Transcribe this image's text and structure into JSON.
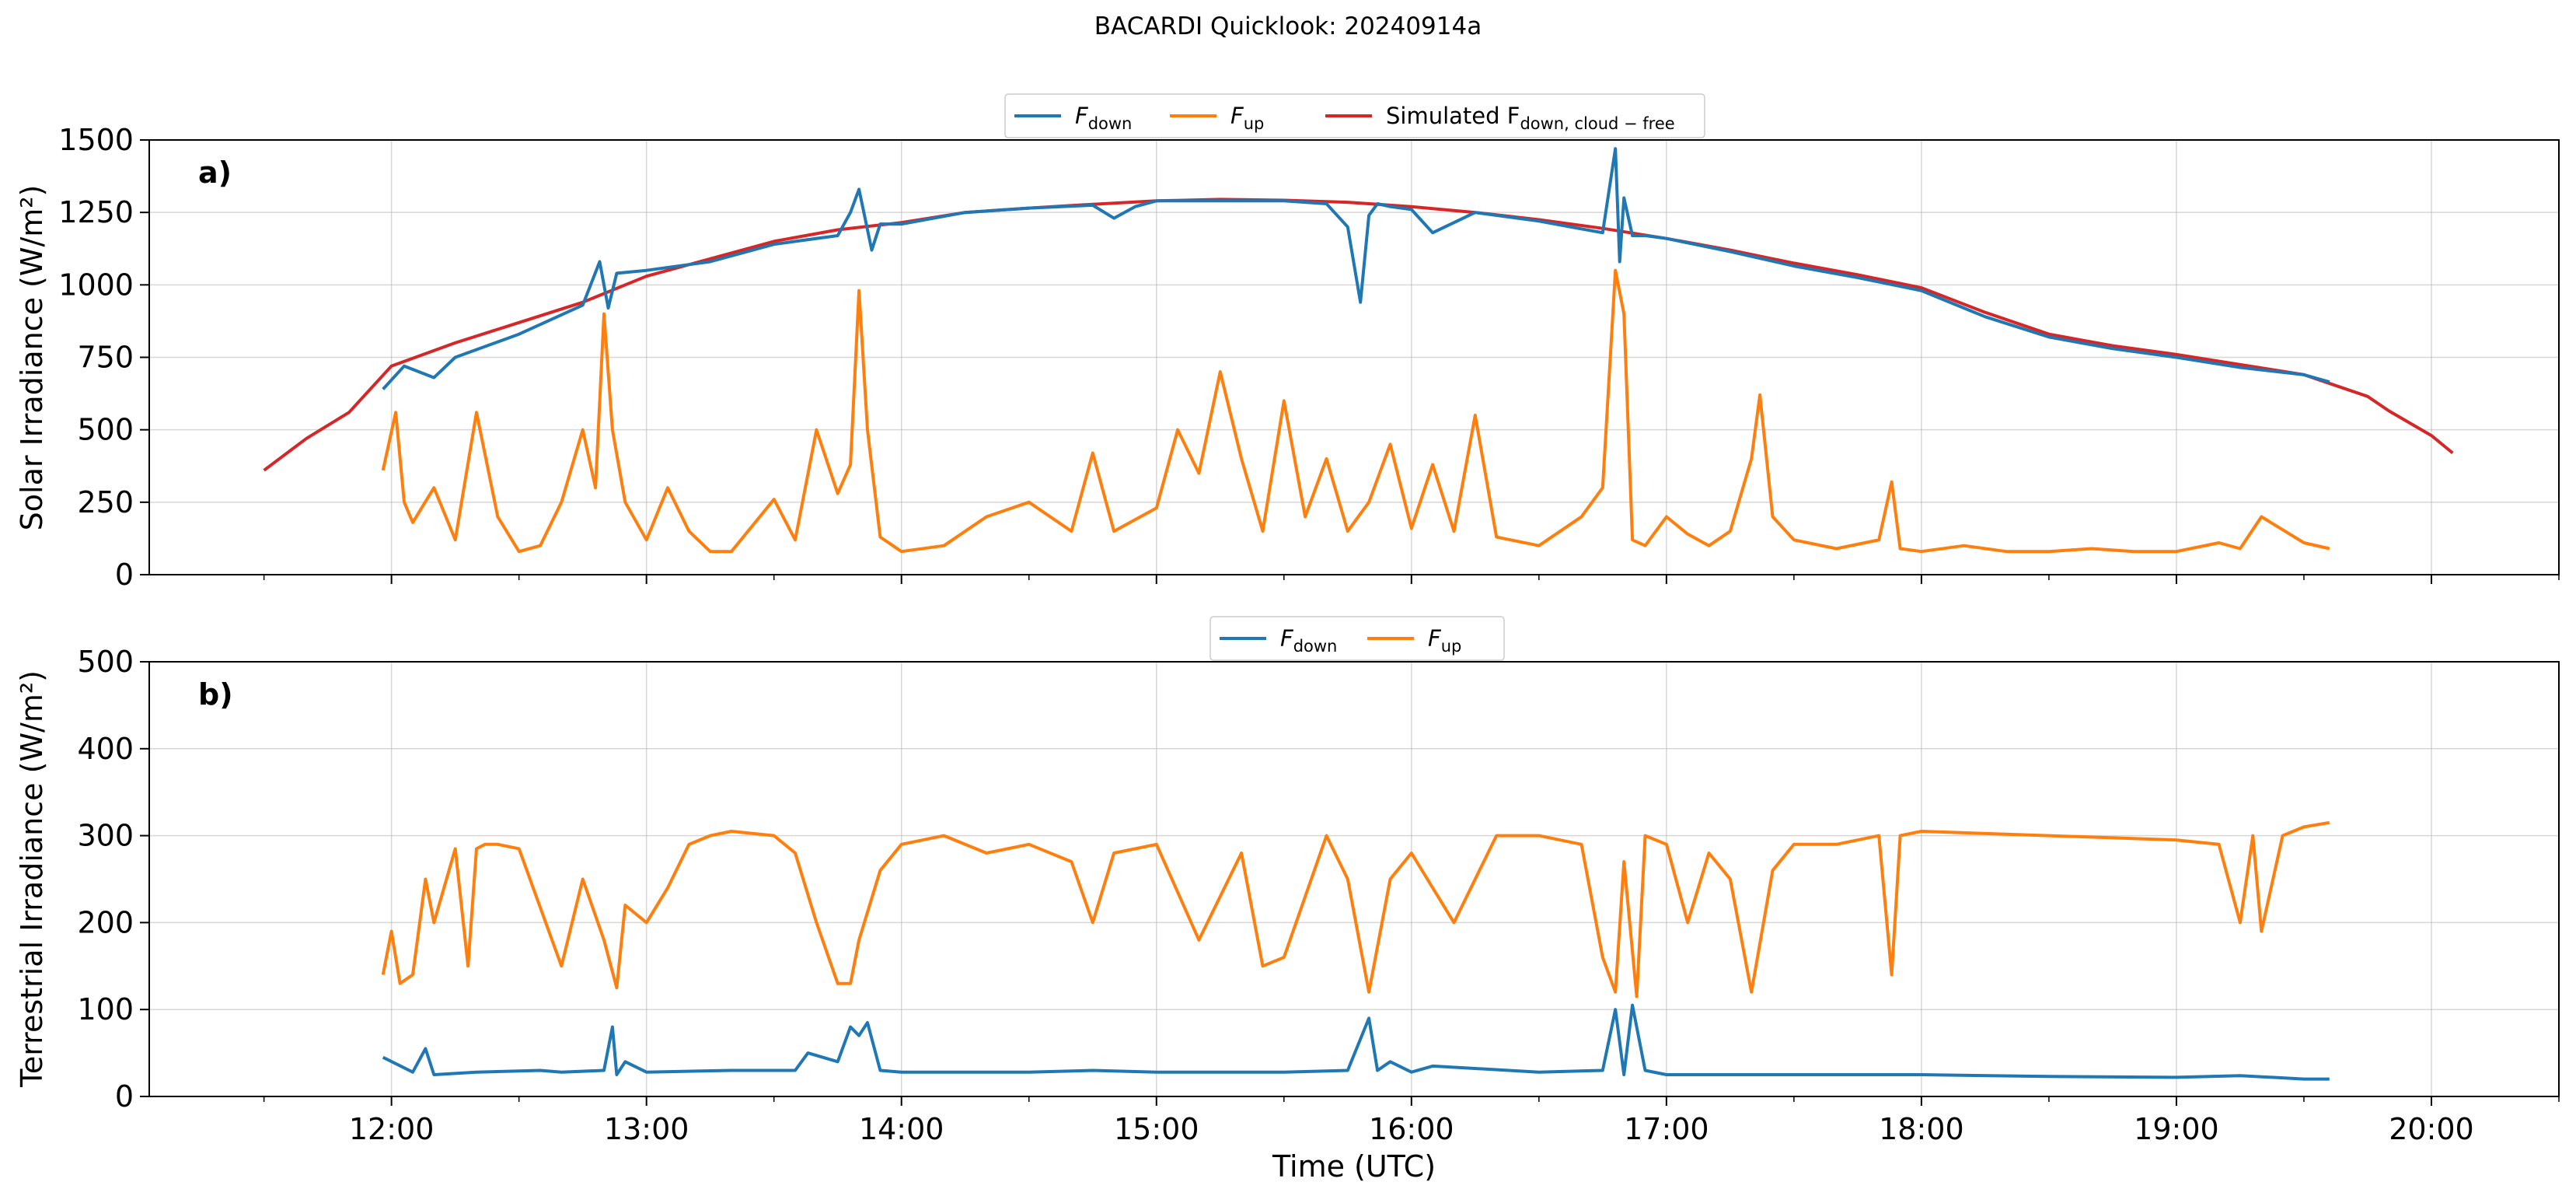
{
  "figure": {
    "title": "BACARDI Quicklook: 20240914a"
  },
  "colors": {
    "down": "#1f77b4",
    "up": "#ff7f0e",
    "sim": "#d62728",
    "grid": "#b0b0b0"
  },
  "chart_data": [
    {
      "type": "line",
      "panel_label": "a)",
      "xlabel": "",
      "ylabel": "Solar Irradiance (W/m²)",
      "xlim": [
        "11:03",
        "20:30"
      ],
      "ylim": [
        0,
        1500
      ],
      "x_ticks": [
        "12:00",
        "13:00",
        "14:00",
        "15:00",
        "16:00",
        "17:00",
        "18:00",
        "19:00",
        "20:00"
      ],
      "y_ticks": [
        0,
        250,
        500,
        750,
        1000,
        1250,
        1500
      ],
      "grid": true,
      "legend": {
        "placement": "top-center",
        "entries": [
          {
            "key": "down",
            "text": "F",
            "sub": "down"
          },
          {
            "key": "up",
            "text": "F",
            "sub": "up"
          },
          {
            "key": "sim",
            "text": "Simulated F",
            "sub": "down, cloud − free"
          }
        ]
      },
      "series": [
        {
          "key": "sim",
          "name": "Simulated F_down, cloud−free",
          "x": [
            "11:30",
            "11:40",
            "11:50",
            "12:00",
            "12:15",
            "12:30",
            "12:45",
            "13:00",
            "13:15",
            "13:30",
            "13:45",
            "14:00",
            "14:15",
            "14:30",
            "14:45",
            "15:00",
            "15:15",
            "15:30",
            "15:45",
            "16:00",
            "16:15",
            "16:30",
            "16:45",
            "17:00",
            "17:15",
            "17:30",
            "17:45",
            "18:00",
            "18:15",
            "18:30",
            "18:45",
            "19:00",
            "19:15",
            "19:30",
            "19:35",
            "19:45",
            "19:50",
            "20:00",
            "20:05"
          ],
          "y": [
            360,
            470,
            560,
            720,
            800,
            870,
            940,
            1030,
            1090,
            1150,
            1190,
            1215,
            1250,
            1265,
            1278,
            1290,
            1295,
            1292,
            1285,
            1270,
            1250,
            1225,
            1195,
            1160,
            1120,
            1075,
            1035,
            990,
            905,
            830,
            790,
            760,
            725,
            690,
            665,
            615,
            565,
            480,
            420
          ]
        },
        {
          "key": "down",
          "name": "F_down",
          "x": [
            "11:58",
            "12:03",
            "12:10",
            "12:15",
            "12:30",
            "12:45",
            "12:49",
            "12:51",
            "12:53",
            "13:00",
            "13:15",
            "13:30",
            "13:35",
            "13:45",
            "13:48",
            "13:50",
            "13:53",
            "13:55",
            "14:00",
            "14:15",
            "14:30",
            "14:45",
            "14:50",
            "14:55",
            "15:00",
            "15:15",
            "15:30",
            "15:40",
            "15:45",
            "15:48",
            "15:50",
            "15:52",
            "15:55",
            "16:00",
            "16:05",
            "16:15",
            "16:30",
            "16:45",
            "16:48",
            "16:49",
            "16:50",
            "16:52",
            "16:55",
            "17:00",
            "17:15",
            "17:30",
            "17:45",
            "18:00",
            "18:15",
            "18:30",
            "18:45",
            "19:00",
            "19:15",
            "19:30",
            "19:36"
          ],
          "y": [
            640,
            720,
            680,
            750,
            830,
            930,
            1080,
            920,
            1040,
            1050,
            1080,
            1140,
            1150,
            1170,
            1250,
            1330,
            1120,
            1210,
            1210,
            1250,
            1265,
            1275,
            1230,
            1270,
            1290,
            1290,
            1290,
            1280,
            1200,
            940,
            1240,
            1280,
            1270,
            1260,
            1180,
            1250,
            1220,
            1180,
            1470,
            1080,
            1300,
            1170,
            1170,
            1160,
            1115,
            1065,
            1025,
            980,
            890,
            820,
            780,
            750,
            715,
            690,
            665
          ]
        },
        {
          "key": "up",
          "name": "F_up",
          "x": [
            "11:58",
            "12:01",
            "12:03",
            "12:05",
            "12:10",
            "12:15",
            "12:20",
            "12:25",
            "12:30",
            "12:35",
            "12:40",
            "12:45",
            "12:48",
            "12:50",
            "12:52",
            "12:55",
            "13:00",
            "13:05",
            "13:10",
            "13:15",
            "13:20",
            "13:30",
            "13:35",
            "13:40",
            "13:45",
            "13:48",
            "13:50",
            "13:52",
            "13:55",
            "14:00",
            "14:10",
            "14:20",
            "14:30",
            "14:40",
            "14:45",
            "14:50",
            "15:00",
            "15:05",
            "15:10",
            "15:15",
            "15:20",
            "15:25",
            "15:30",
            "15:35",
            "15:40",
            "15:45",
            "15:50",
            "15:55",
            "16:00",
            "16:05",
            "16:10",
            "16:15",
            "16:20",
            "16:30",
            "16:40",
            "16:45",
            "16:48",
            "16:50",
            "16:52",
            "16:55",
            "17:00",
            "17:05",
            "17:10",
            "17:15",
            "17:20",
            "17:22",
            "17:25",
            "17:30",
            "17:40",
            "17:50",
            "17:53",
            "17:55",
            "18:00",
            "18:10",
            "18:20",
            "18:30",
            "18:40",
            "18:50",
            "19:00",
            "19:10",
            "19:15",
            "19:20",
            "19:30",
            "19:36"
          ],
          "y": [
            360,
            560,
            250,
            180,
            300,
            120,
            560,
            200,
            80,
            100,
            250,
            500,
            300,
            900,
            500,
            250,
            120,
            300,
            150,
            80,
            80,
            260,
            120,
            500,
            280,
            380,
            980,
            500,
            130,
            80,
            100,
            200,
            250,
            150,
            420,
            150,
            230,
            500,
            350,
            700,
            400,
            150,
            600,
            200,
            400,
            150,
            250,
            450,
            160,
            380,
            150,
            550,
            130,
            100,
            200,
            300,
            1050,
            900,
            120,
            100,
            200,
            140,
            100,
            150,
            400,
            620,
            200,
            120,
            90,
            120,
            320,
            90,
            80,
            100,
            80,
            80,
            90,
            80,
            80,
            110,
            90,
            200,
            110,
            90
          ]
        }
      ]
    },
    {
      "type": "line",
      "panel_label": "b)",
      "xlabel": "Time (UTC)",
      "ylabel": "Terrestrial Irradiance (W/m²)",
      "xlim": [
        "11:03",
        "20:30"
      ],
      "ylim": [
        0,
        500
      ],
      "x_ticks": [
        "12:00",
        "13:00",
        "14:00",
        "15:00",
        "16:00",
        "17:00",
        "18:00",
        "19:00",
        "20:00"
      ],
      "y_ticks": [
        0,
        100,
        200,
        300,
        400,
        500
      ],
      "grid": true,
      "legend": {
        "placement": "top-center",
        "entries": [
          {
            "key": "down",
            "text": "F",
            "sub": "down"
          },
          {
            "key": "up",
            "text": "F",
            "sub": "up"
          }
        ]
      },
      "series": [
        {
          "key": "down",
          "name": "F_down",
          "x": [
            "11:58",
            "12:05",
            "12:08",
            "12:10",
            "12:20",
            "12:35",
            "12:40",
            "12:50",
            "12:52",
            "12:53",
            "12:55",
            "13:00",
            "13:20",
            "13:35",
            "13:38",
            "13:45",
            "13:48",
            "13:50",
            "13:52",
            "13:55",
            "14:00",
            "14:30",
            "14:45",
            "15:00",
            "15:30",
            "15:45",
            "15:50",
            "15:52",
            "15:55",
            "16:00",
            "16:05",
            "16:30",
            "16:45",
            "16:48",
            "16:50",
            "16:52",
            "16:55",
            "17:00",
            "17:30",
            "18:00",
            "18:30",
            "19:00",
            "19:15",
            "19:30",
            "19:36"
          ],
          "y": [
            45,
            28,
            55,
            25,
            28,
            30,
            28,
            30,
            80,
            25,
            40,
            28,
            30,
            30,
            50,
            40,
            80,
            70,
            85,
            30,
            28,
            28,
            30,
            28,
            28,
            30,
            90,
            30,
            40,
            28,
            35,
            28,
            30,
            100,
            25,
            105,
            30,
            25,
            25,
            25,
            23,
            22,
            24,
            20,
            20
          ]
        },
        {
          "key": "up",
          "name": "F_up",
          "x": [
            "11:58",
            "12:00",
            "12:02",
            "12:05",
            "12:08",
            "12:10",
            "12:15",
            "12:18",
            "12:20",
            "12:22",
            "12:25",
            "12:30",
            "12:40",
            "12:45",
            "12:50",
            "12:53",
            "12:55",
            "13:00",
            "13:05",
            "13:10",
            "13:15",
            "13:20",
            "13:30",
            "13:35",
            "13:40",
            "13:45",
            "13:48",
            "13:50",
            "13:55",
            "14:00",
            "14:10",
            "14:20",
            "14:30",
            "14:40",
            "14:45",
            "14:50",
            "15:00",
            "15:10",
            "15:20",
            "15:25",
            "15:30",
            "15:40",
            "15:45",
            "15:50",
            "15:55",
            "16:00",
            "16:10",
            "16:20",
            "16:30",
            "16:40",
            "16:45",
            "16:48",
            "16:50",
            "16:53",
            "16:55",
            "17:00",
            "17:05",
            "17:10",
            "17:15",
            "17:20",
            "17:25",
            "17:30",
            "17:40",
            "17:50",
            "17:53",
            "17:55",
            "18:00",
            "18:30",
            "19:00",
            "19:10",
            "19:15",
            "19:18",
            "19:20",
            "19:25",
            "19:30",
            "19:36"
          ],
          "y": [
            140,
            190,
            130,
            140,
            250,
            200,
            285,
            150,
            285,
            290,
            290,
            285,
            150,
            250,
            180,
            125,
            220,
            200,
            240,
            290,
            300,
            305,
            300,
            280,
            200,
            130,
            130,
            180,
            260,
            290,
            300,
            280,
            290,
            270,
            200,
            280,
            290,
            180,
            280,
            150,
            160,
            300,
            250,
            120,
            250,
            280,
            200,
            300,
            300,
            290,
            160,
            120,
            270,
            115,
            300,
            290,
            200,
            280,
            250,
            120,
            260,
            290,
            290,
            300,
            140,
            300,
            305,
            300,
            295,
            290,
            200,
            300,
            190,
            300,
            310,
            315
          ]
        }
      ]
    }
  ]
}
